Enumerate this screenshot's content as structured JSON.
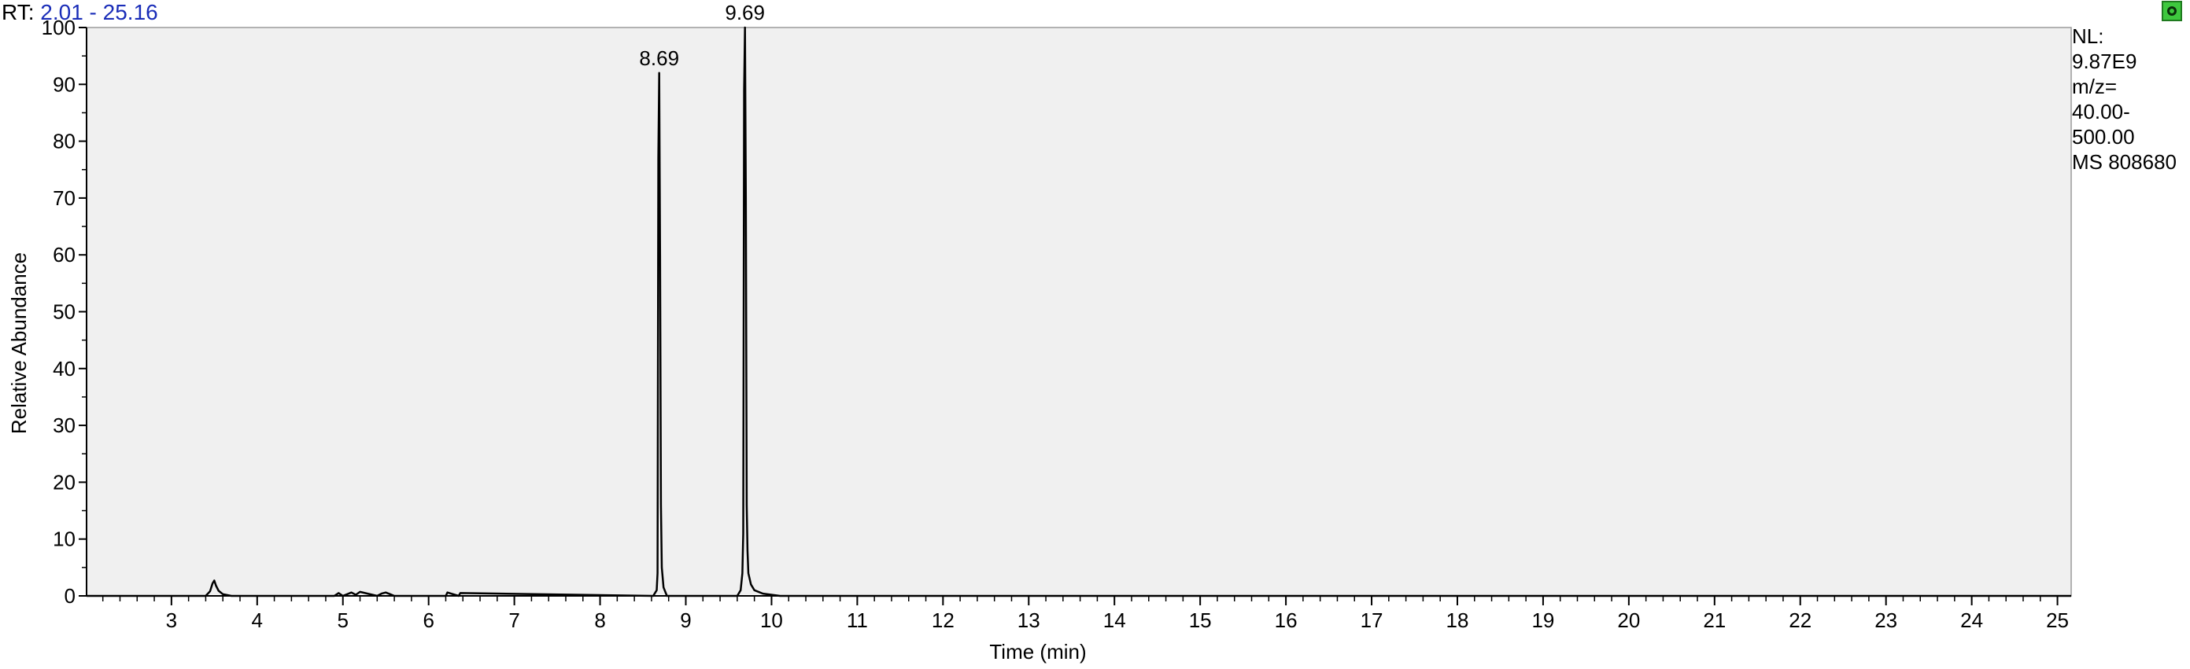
{
  "header": {
    "rt_prefix": "RT:",
    "rt_range": "2.01 - 25.16"
  },
  "side_info": {
    "nl_label": "NL:",
    "nl_value": "9.87E9",
    "mz_label": "m/z=",
    "mz_low": "40.00-",
    "mz_high": "500.00",
    "scan": "MS 808680"
  },
  "icons": {
    "corner": "chromatogram-refresh-icon"
  },
  "colors": {
    "plot_bg": "#f0f0f0",
    "trace": "#000000",
    "rt_value": "#1a2db8",
    "icon": "#3ec83e"
  },
  "chart_data": {
    "type": "line",
    "xlabel": "Time (min)",
    "ylabel": "Relative Abundance",
    "xlim": [
      2.01,
      25.16
    ],
    "ylim": [
      0,
      100
    ],
    "x_ticks": [
      3,
      4,
      5,
      6,
      7,
      8,
      9,
      10,
      11,
      12,
      13,
      14,
      15,
      16,
      17,
      18,
      19,
      20,
      21,
      22,
      23,
      24,
      25
    ],
    "y_ticks": [
      0,
      10,
      20,
      30,
      40,
      50,
      60,
      70,
      80,
      90,
      100
    ],
    "grid": false,
    "series": [
      {
        "x": [
          2.01,
          3.4,
          3.45,
          3.48,
          3.5,
          3.52,
          3.55,
          3.6,
          3.7,
          4.9,
          4.95,
          5.0,
          5.1,
          5.15,
          5.2,
          5.4,
          5.45,
          5.5,
          5.55,
          5.6,
          6.2,
          6.22,
          6.35,
          6.37,
          8.62,
          8.66,
          8.67,
          8.68,
          8.69,
          8.7,
          8.71,
          8.72,
          8.74,
          8.78,
          9.6,
          9.64,
          9.66,
          9.67,
          9.68,
          9.69,
          9.7,
          9.71,
          9.72,
          9.73,
          9.76,
          9.8,
          9.9,
          10.1,
          25.16
        ],
        "y": [
          0,
          0,
          0.8,
          2.2,
          2.7,
          1.8,
          0.9,
          0.3,
          0,
          0,
          0.5,
          0,
          0.6,
          0.2,
          0.7,
          0,
          0.4,
          0.6,
          0.3,
          0,
          0,
          0.6,
          0,
          0.5,
          0,
          1,
          4,
          77,
          92,
          60,
          16,
          5,
          1.5,
          0,
          0,
          1,
          4,
          11,
          89,
          100,
          70,
          16,
          8,
          4,
          2,
          1,
          0.4,
          0,
          0
        ]
      }
    ],
    "annotations": [
      {
        "label": "8.69",
        "x": 8.69,
        "y": 92
      },
      {
        "label": "9.69",
        "x": 9.69,
        "y": 100
      }
    ]
  }
}
